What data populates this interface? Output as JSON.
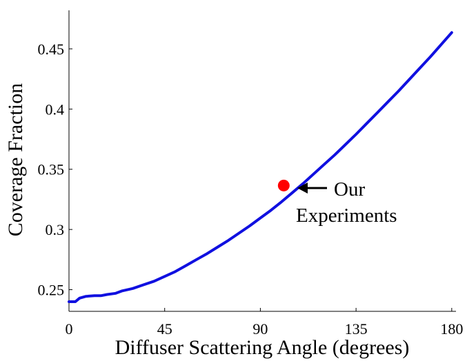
{
  "chart_data": {
    "type": "line",
    "title": "",
    "xlabel": "Diffuser Scattering Angle (degrees)",
    "ylabel": "Coverage Fraction",
    "xlim": [
      0,
      182
    ],
    "ylim": [
      0.232,
      0.482
    ],
    "x_ticks": [
      0,
      45,
      90,
      135,
      180
    ],
    "x_tick_labels": [
      "0",
      "45",
      "90",
      "135",
      "180"
    ],
    "y_ticks": [
      0.25,
      0.3,
      0.35,
      0.4,
      0.45
    ],
    "y_tick_labels": [
      "0.25",
      "0.3",
      "0.35",
      "0.4",
      "0.45"
    ],
    "grid": false,
    "line_color": "#1010e0",
    "series": [
      {
        "color": "#1010e0",
        "x": [
          0,
          3,
          5,
          8,
          12,
          15,
          18,
          22,
          25,
          30,
          35,
          40,
          45,
          50,
          55,
          60,
          65,
          70,
          75,
          80,
          85,
          90,
          95,
          100,
          105,
          110,
          115,
          120,
          125,
          130,
          135,
          140,
          145,
          150,
          155,
          160,
          165,
          170,
          175,
          180
        ],
        "y": [
          0.24,
          0.24,
          0.243,
          0.2445,
          0.245,
          0.245,
          0.246,
          0.247,
          0.249,
          0.251,
          0.254,
          0.257,
          0.261,
          0.265,
          0.27,
          0.275,
          0.28,
          0.2855,
          0.291,
          0.297,
          0.303,
          0.3095,
          0.316,
          0.323,
          0.3305,
          0.338,
          0.346,
          0.354,
          0.362,
          0.3705,
          0.379,
          0.388,
          0.397,
          0.406,
          0.415,
          0.4245,
          0.434,
          0.4435,
          0.4535,
          0.4635
        ]
      }
    ],
    "highlight_point": {
      "x": 101,
      "y": 0.3365,
      "color": "#ff0000"
    },
    "annotation": {
      "lines": [
        "Our",
        "Experiments"
      ],
      "arrow_color": "#000000"
    }
  }
}
